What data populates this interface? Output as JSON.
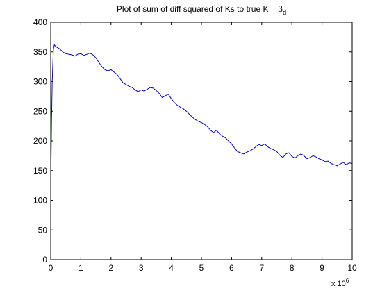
{
  "chart_data": {
    "type": "line",
    "title": "Plot of sum of diff squared of Ks to true K = ",
    "title_symbol": "β",
    "title_subscript": "d",
    "xlabel": "",
    "ylabel": "",
    "x_multiplier_base": "x 10",
    "x_multiplier_exp": "6",
    "xlim": [
      0,
      10
    ],
    "ylim": [
      0,
      400
    ],
    "x_ticks": [
      0,
      1,
      2,
      3,
      4,
      5,
      6,
      7,
      8,
      9,
      10
    ],
    "y_ticks": [
      0,
      50,
      100,
      150,
      200,
      250,
      300,
      350,
      400
    ],
    "grid": false,
    "line_color": "#0000cc",
    "series": [
      {
        "x": [
          0,
          0.01,
          0.03,
          0.05,
          0.07,
          0.09,
          0.12,
          0.15,
          0.2,
          0.3,
          0.4,
          0.5,
          0.6,
          0.7,
          0.8,
          0.9,
          1.0,
          1.1,
          1.2,
          1.3,
          1.4,
          1.5,
          1.6,
          1.7,
          1.8,
          1.9,
          2.0,
          2.1,
          2.2,
          2.3,
          2.4,
          2.5,
          2.6,
          2.7,
          2.8,
          2.9,
          3.0,
          3.1,
          3.2,
          3.3,
          3.4,
          3.5,
          3.6,
          3.7,
          3.8,
          3.9,
          4.0,
          4.1,
          4.2,
          4.3,
          4.4,
          4.5,
          4.6,
          4.7,
          4.8,
          4.9,
          5.0,
          5.1,
          5.2,
          5.3,
          5.4,
          5.5,
          5.6,
          5.7,
          5.8,
          5.9,
          6.0,
          6.1,
          6.2,
          6.3,
          6.4,
          6.5,
          6.6,
          6.7,
          6.8,
          6.9,
          7.0,
          7.1,
          7.2,
          7.3,
          7.4,
          7.5,
          7.6,
          7.7,
          7.8,
          7.9,
          8.0,
          8.1,
          8.2,
          8.3,
          8.4,
          8.5,
          8.6,
          8.7,
          8.8,
          8.9,
          9.0,
          9.1,
          9.2,
          9.3,
          9.4,
          9.5,
          9.6,
          9.7,
          9.8,
          9.9,
          10.0
        ],
        "y": [
          130,
          160,
          240,
          300,
          330,
          355,
          362,
          360,
          358,
          355,
          350,
          347,
          346,
          345,
          343,
          346,
          347,
          344,
          346,
          348,
          345,
          340,
          332,
          325,
          320,
          318,
          320,
          316,
          312,
          305,
          298,
          295,
          292,
          290,
          286,
          283,
          286,
          284,
          287,
          290,
          289,
          285,
          280,
          273,
          276,
          279,
          271,
          265,
          260,
          257,
          254,
          250,
          245,
          240,
          236,
          233,
          231,
          228,
          224,
          218,
          214,
          218,
          212,
          208,
          205,
          200,
          195,
          188,
          182,
          180,
          178,
          181,
          183,
          186,
          190,
          194,
          192,
          195,
          190,
          187,
          185,
          182,
          176,
          172,
          178,
          180,
          174,
          171,
          175,
          178,
          175,
          170,
          172,
          175,
          173,
          170,
          168,
          165,
          166,
          162,
          160,
          158,
          161,
          164,
          160,
          163,
          162
        ]
      }
    ]
  }
}
